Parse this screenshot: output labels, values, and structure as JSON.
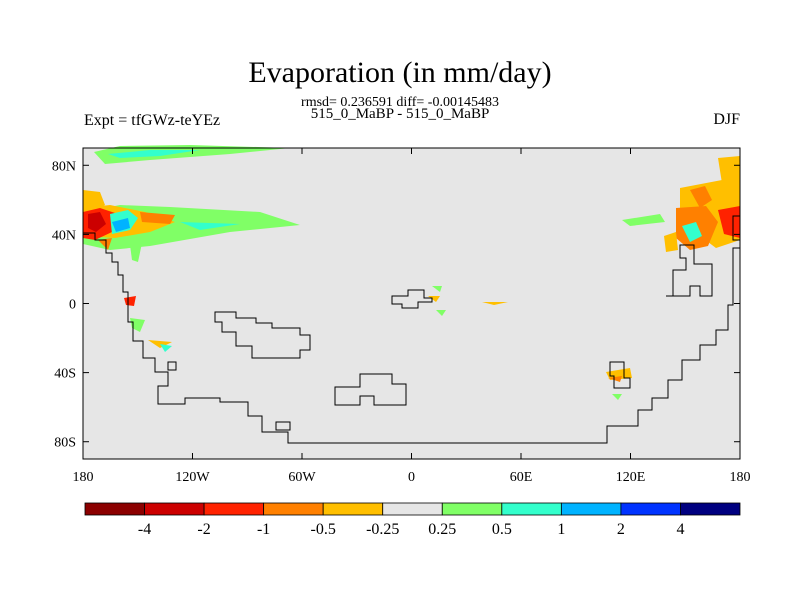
{
  "header": {
    "title": "Evaporation (in mm/day)",
    "stats": "rmsd= 0.236591 diff= -0.00145483",
    "period": "515_0_MaBP - 515_0_MaBP",
    "expt": "Expt = tfGWz-teYEz",
    "season": "DJF"
  },
  "axes": {
    "lat_labels": [
      "80N",
      "40N",
      "0",
      "40S",
      "80S"
    ],
    "lat_values": [
      80,
      40,
      0,
      -40,
      -80
    ],
    "lon_labels": [
      "180",
      "120W",
      "60W",
      "0",
      "60E",
      "120E",
      "180"
    ],
    "lon_values": [
      -180,
      -120,
      -60,
      0,
      60,
      120,
      180
    ]
  },
  "colorbar": {
    "colors": [
      "#8b0000",
      "#cc0000",
      "#ff2200",
      "#ff8000",
      "#ffbf00",
      "#e6e6e6",
      "#80ff66",
      "#33ffcc",
      "#00b3ff",
      "#0033ff",
      "#000080"
    ],
    "labels": [
      "-4",
      "-2",
      "-1",
      "-0.5",
      "-0.25",
      "0.25",
      "0.5",
      "1",
      "2",
      "4"
    ]
  },
  "colors": {
    "background_field": "#e6e6e6",
    "coastline": "#000000"
  }
}
